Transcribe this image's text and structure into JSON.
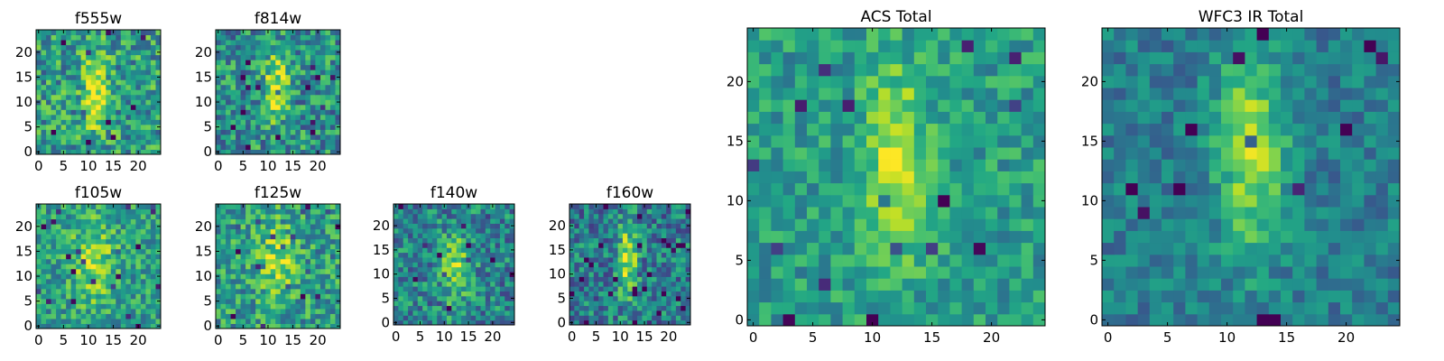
{
  "chart_data": [
    {
      "type": "heatmap",
      "title": "f555w",
      "grid_size": 25,
      "xlim": [
        0,
        24
      ],
      "ylim": [
        0,
        24
      ],
      "xticks": [
        "0",
        "5",
        "10",
        "15",
        "20"
      ],
      "yticks": [
        "0",
        "5",
        "10",
        "15",
        "20"
      ],
      "colormap": "viridis",
      "seed": 11,
      "feature": {
        "x": 11.5,
        "y": 12,
        "sx": 1.6,
        "sy": 5.5,
        "amp": 0.45
      },
      "noise": 0.55,
      "base": 0.55
    },
    {
      "type": "heatmap",
      "title": "f814w",
      "grid_size": 25,
      "xlim": [
        0,
        24
      ],
      "ylim": [
        0,
        24
      ],
      "xticks": [
        "0",
        "5",
        "10",
        "15",
        "20"
      ],
      "yticks": [
        "0",
        "5",
        "10",
        "15",
        "20"
      ],
      "colormap": "viridis",
      "seed": 23,
      "feature": {
        "x": 11.5,
        "y": 13,
        "sx": 1.7,
        "sy": 5.0,
        "amp": 0.45
      },
      "noise": 0.55,
      "base": 0.5
    },
    {
      "type": "heatmap",
      "title": "f105w",
      "grid_size": 25,
      "xlim": [
        0,
        24
      ],
      "ylim": [
        0,
        24
      ],
      "xticks": [
        "0",
        "5",
        "10",
        "15",
        "20"
      ],
      "yticks": [
        "0",
        "5",
        "10",
        "15",
        "20"
      ],
      "colormap": "viridis",
      "seed": 37,
      "feature": {
        "x": 11,
        "y": 13,
        "sx": 3.0,
        "sy": 6.0,
        "amp": 0.3
      },
      "noise": 0.45,
      "base": 0.55
    },
    {
      "type": "heatmap",
      "title": "f125w",
      "grid_size": 25,
      "xlim": [
        0,
        24
      ],
      "ylim": [
        0,
        24
      ],
      "xticks": [
        "0",
        "5",
        "10",
        "15",
        "20"
      ],
      "yticks": [
        "0",
        "5",
        "10",
        "15",
        "20"
      ],
      "colormap": "viridis",
      "seed": 41,
      "feature": {
        "x": 12,
        "y": 13,
        "sx": 2.5,
        "sy": 6.0,
        "amp": 0.3
      },
      "noise": 0.5,
      "base": 0.55
    },
    {
      "type": "heatmap",
      "title": "f140w",
      "grid_size": 25,
      "xlim": [
        0,
        24
      ],
      "ylim": [
        0,
        24
      ],
      "xticks": [
        "0",
        "5",
        "10",
        "15",
        "20"
      ],
      "yticks": [
        "0",
        "5",
        "10",
        "15",
        "20"
      ],
      "colormap": "viridis",
      "seed": 53,
      "feature": {
        "x": 12.5,
        "y": 11,
        "sx": 2.0,
        "sy": 5.0,
        "amp": 0.4
      },
      "noise": 0.5,
      "base": 0.45
    },
    {
      "type": "heatmap",
      "title": "f160w",
      "grid_size": 25,
      "xlim": [
        0,
        24
      ],
      "ylim": [
        0,
        24
      ],
      "xticks": [
        "0",
        "5",
        "10",
        "15",
        "20"
      ],
      "yticks": [
        "0",
        "5",
        "10",
        "15",
        "20"
      ],
      "colormap": "viridis",
      "seed": 67,
      "feature": {
        "x": 11.5,
        "y": 13,
        "sx": 1.3,
        "sy": 5.5,
        "amp": 0.5
      },
      "noise": 0.5,
      "base": 0.42
    },
    {
      "type": "heatmap",
      "title": "ACS Total",
      "grid_size": 25,
      "xlim": [
        0,
        24
      ],
      "ylim": [
        0,
        24
      ],
      "xticks": [
        "0",
        "5",
        "10",
        "15",
        "20"
      ],
      "yticks": [
        "0",
        "5",
        "10",
        "15",
        "20"
      ],
      "colormap": "viridis",
      "seed": 79,
      "feature": {
        "x": 12,
        "y": 13,
        "sx": 1.8,
        "sy": 5.5,
        "amp": 0.4
      },
      "noise": 0.35,
      "base": 0.55
    },
    {
      "type": "heatmap",
      "title": "WFC3 IR Total",
      "grid_size": 25,
      "xlim": [
        0,
        24
      ],
      "ylim": [
        0,
        24
      ],
      "xticks": [
        "0",
        "5",
        "10",
        "15",
        "20"
      ],
      "yticks": [
        "0",
        "5",
        "10",
        "15",
        "20"
      ],
      "colormap": "viridis",
      "seed": 97,
      "feature": {
        "x": 12,
        "y": 14,
        "sx": 2.0,
        "sy": 6.0,
        "amp": 0.45
      },
      "noise": 0.3,
      "base": 0.42
    }
  ]
}
